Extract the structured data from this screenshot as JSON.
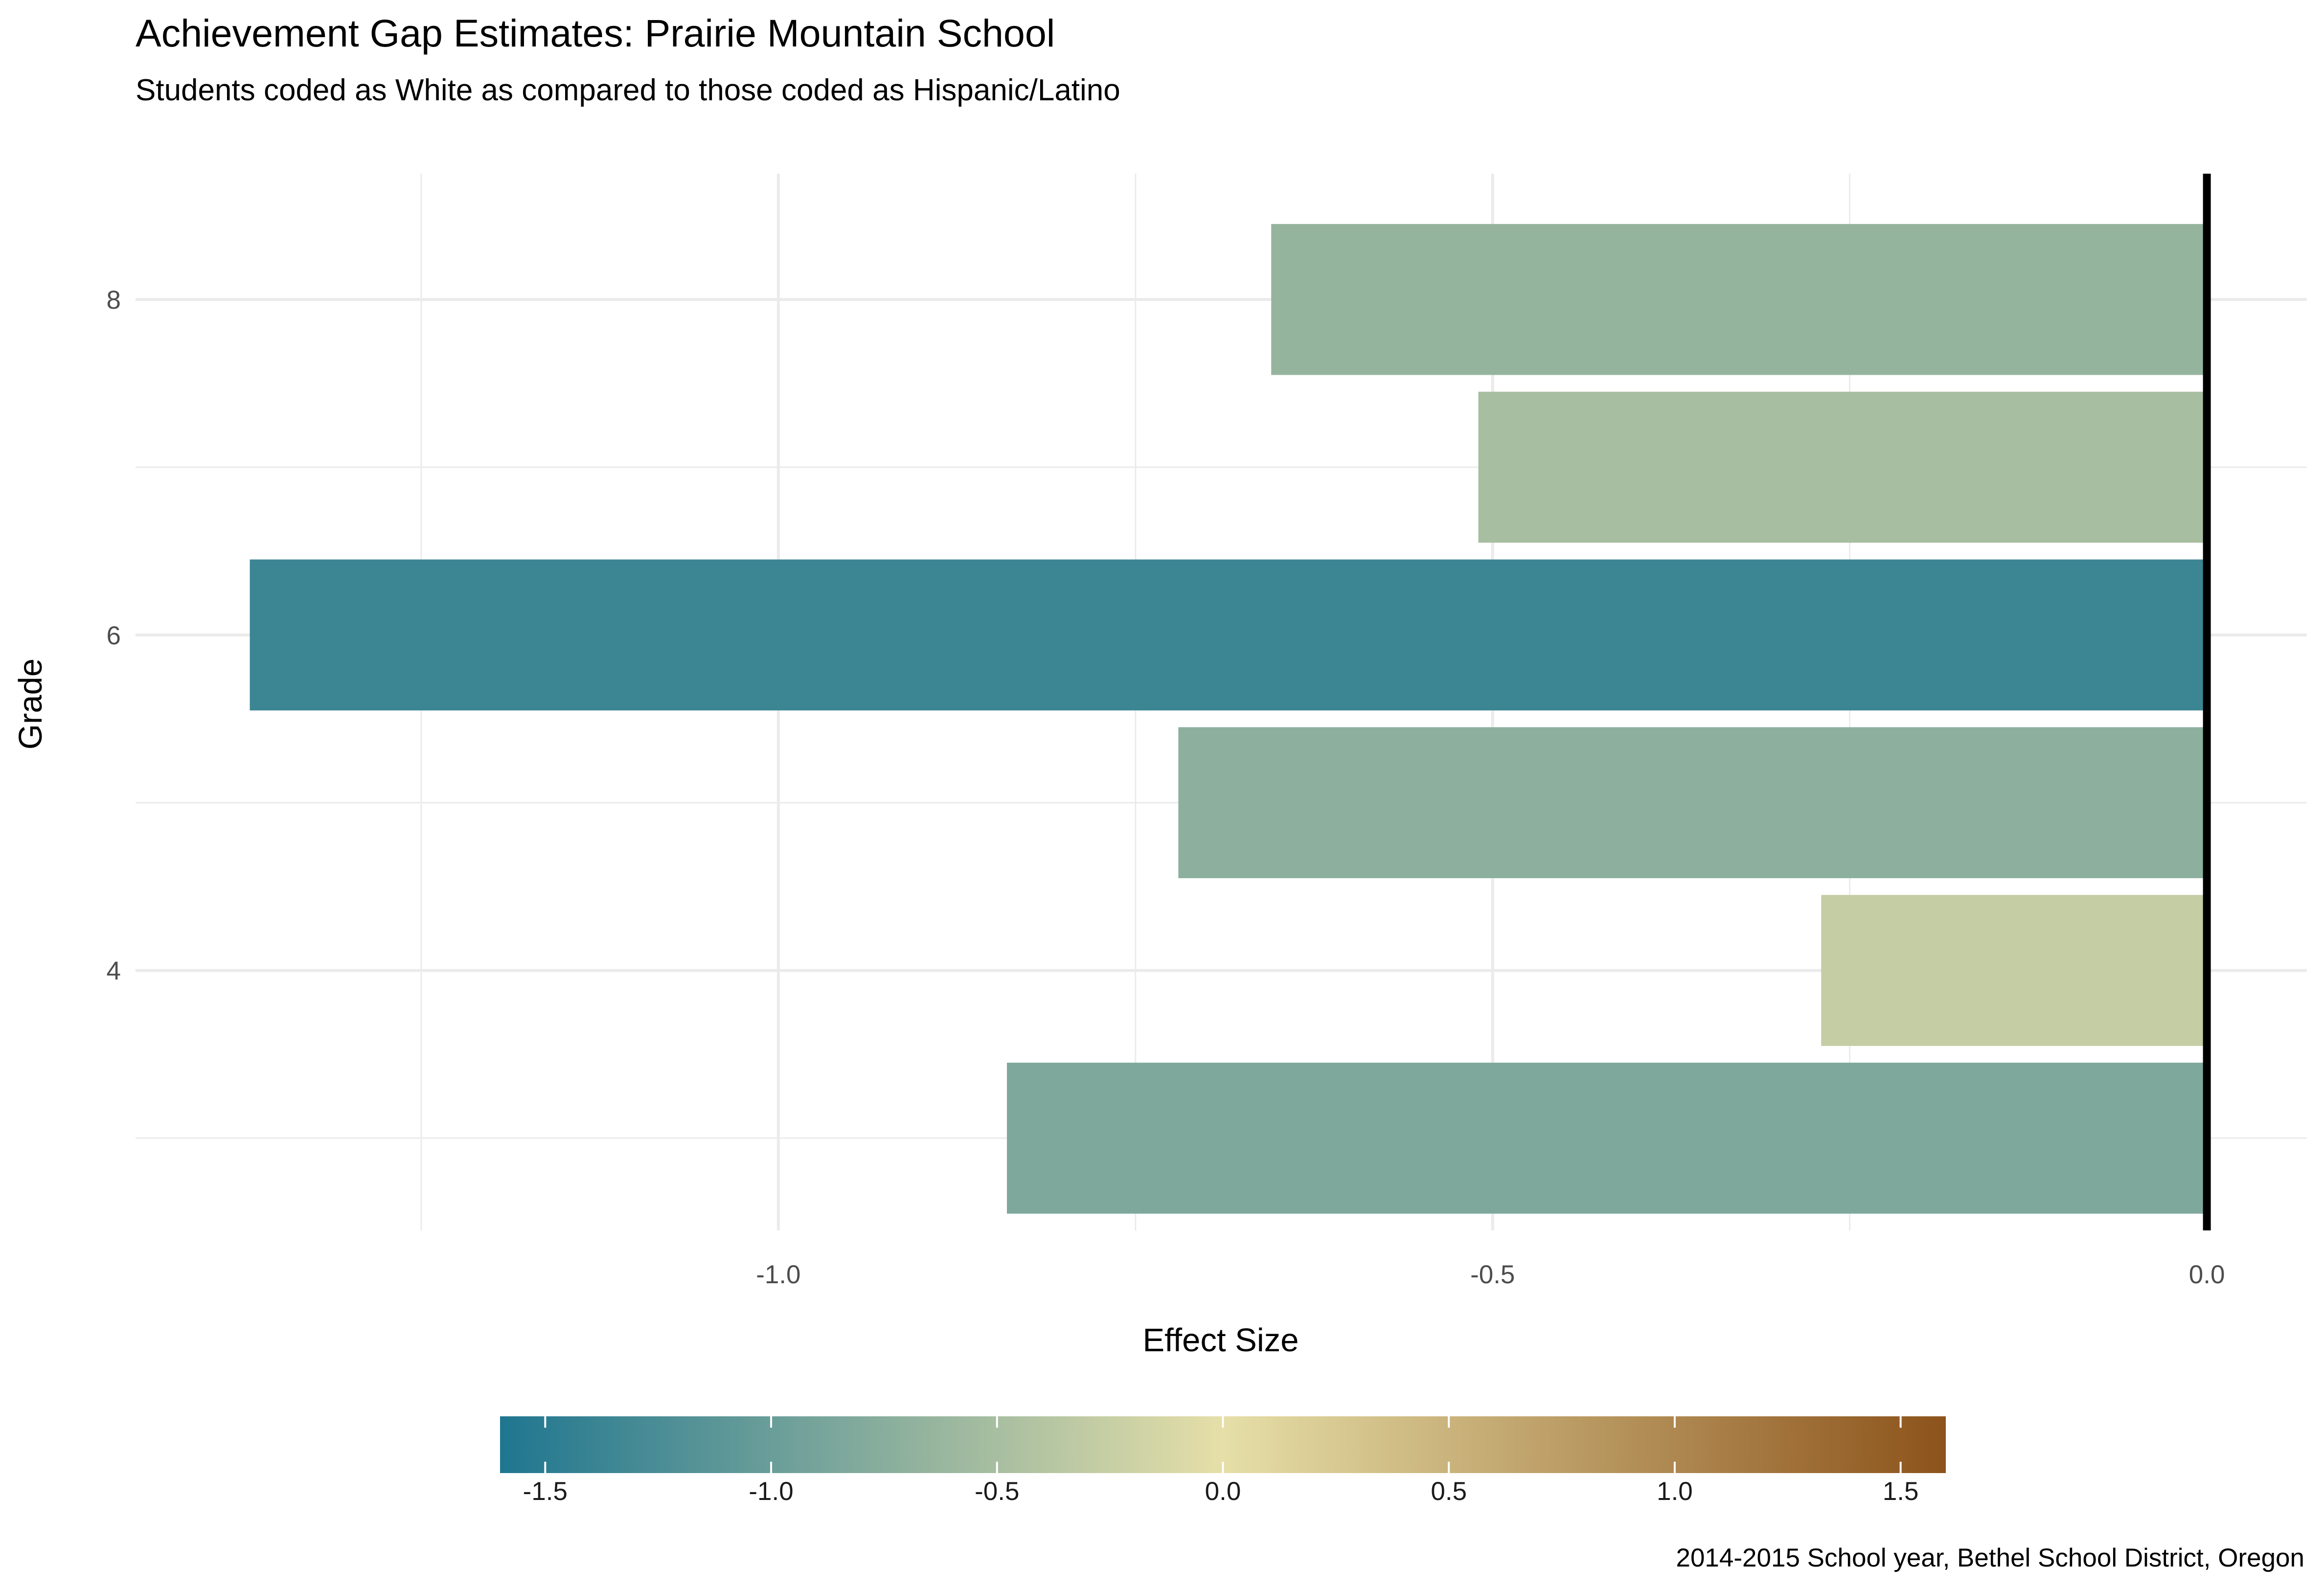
{
  "chart_data": {
    "type": "bar",
    "orientation": "horizontal",
    "title": "Achievement Gap Estimates: Prairie Mountain School",
    "subtitle": "Students coded as White as compared to those coded as Hispanic/Latino",
    "xlabel": "Effect Size",
    "ylabel": "Grade",
    "caption": "2014-2015 School year, Bethel   School District, Oregon",
    "categories": [
      3,
      4,
      5,
      6,
      7,
      8
    ],
    "values": [
      -0.84,
      -0.27,
      -0.72,
      -1.37,
      -0.51,
      -0.655
    ],
    "x_ticks": [
      -1.0,
      -0.5,
      0.0
    ],
    "x_tick_labels": [
      "-1.0",
      "-0.5",
      "0.0"
    ],
    "y_ticks": [
      4,
      6,
      8
    ],
    "y_tick_labels": [
      "4",
      "6",
      "8"
    ],
    "xlim": [
      -1.45,
      0.07
    ],
    "ylim": [
      2.45,
      8.75
    ],
    "reference_line": 0,
    "grid": true,
    "legend": {
      "position": "bottom",
      "type": "colorbar",
      "range": [
        -1.6,
        1.6
      ],
      "ticks": [
        -1.5,
        -1.0,
        -0.5,
        0.0,
        0.5,
        1.0,
        1.5
      ],
      "tick_labels": [
        "-1.5",
        "-1.0",
        "-0.5",
        "0.0",
        "0.5",
        "1.0",
        "1.5"
      ]
    },
    "colors": {
      "low": "#1f7690",
      "mid": "#e6dfa8",
      "high": "#8c531b",
      "grid": "#ebebeb",
      "zero_line": "#000000"
    }
  }
}
